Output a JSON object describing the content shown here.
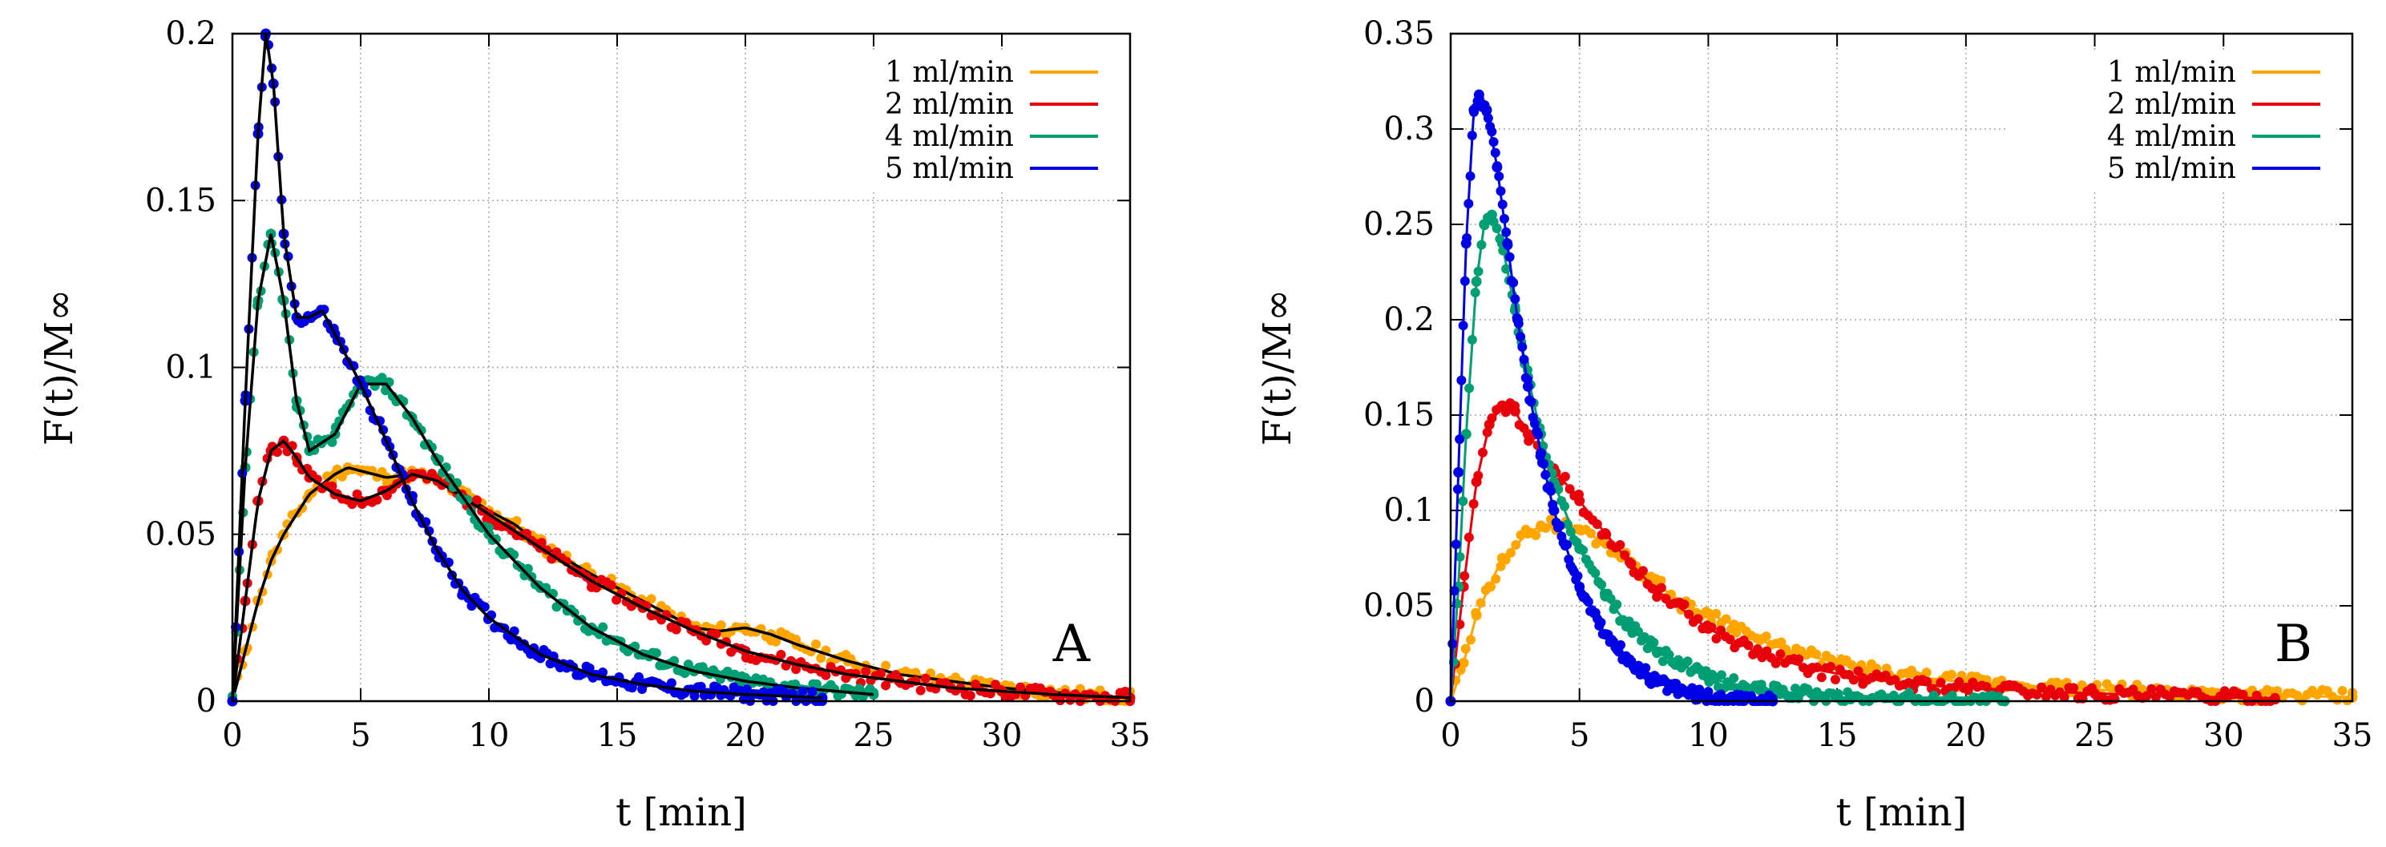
{
  "chart_data": [
    {
      "type": "scatter",
      "panel_label": "A",
      "xlabel": "t [min]",
      "ylabel": "F(t)/M∞",
      "xlim": [
        0,
        35
      ],
      "ylim": [
        0,
        0.2
      ],
      "xticks": [
        "0",
        "5",
        "10",
        "15",
        "20",
        "25",
        "30",
        "35"
      ],
      "yticks": [
        "0",
        "0.05",
        "0.1",
        "0.15",
        "0.2"
      ],
      "grid": true,
      "legend_position": "top-right",
      "fit_curves": "black solid lines",
      "series": [
        {
          "name": "1 ml/min",
          "color": "#FFA500",
          "t_end": 35,
          "x": [
            0,
            0.5,
            1,
            1.5,
            2,
            3,
            4,
            4.5,
            5,
            6,
            7,
            8,
            9,
            10,
            11,
            12,
            14,
            16,
            18,
            19,
            20,
            21,
            22,
            24,
            26,
            28,
            30,
            33,
            35
          ],
          "y": [
            0,
            0.015,
            0.03,
            0.042,
            0.05,
            0.062,
            0.068,
            0.07,
            0.069,
            0.067,
            0.068,
            0.066,
            0.062,
            0.057,
            0.053,
            0.047,
            0.038,
            0.03,
            0.022,
            0.021,
            0.022,
            0.02,
            0.017,
            0.012,
            0.008,
            0.006,
            0.004,
            0.002,
            0.001
          ]
        },
        {
          "name": "2 ml/min",
          "color": "#E8000B",
          "t_end": 35,
          "x": [
            0,
            0.5,
            1,
            1.5,
            2,
            2.5,
            3,
            4,
            5,
            6,
            7,
            8,
            9,
            10,
            12,
            14,
            16,
            18,
            20,
            22,
            24,
            26,
            28,
            30,
            32,
            35
          ],
          "y": [
            0,
            0.03,
            0.06,
            0.075,
            0.078,
            0.073,
            0.067,
            0.062,
            0.06,
            0.063,
            0.068,
            0.066,
            0.061,
            0.056,
            0.046,
            0.036,
            0.028,
            0.021,
            0.015,
            0.011,
            0.008,
            0.006,
            0.004,
            0.003,
            0.002,
            0.001
          ]
        },
        {
          "name": "4 ml/min",
          "color": "#009E73",
          "t_end": 25,
          "x": [
            0,
            0.5,
            1,
            1.5,
            2,
            2.5,
            3,
            4,
            5,
            6,
            7,
            8,
            10,
            12,
            14,
            16,
            18,
            20,
            22,
            25
          ],
          "y": [
            0,
            0.07,
            0.12,
            0.14,
            0.12,
            0.09,
            0.075,
            0.08,
            0.095,
            0.095,
            0.085,
            0.072,
            0.05,
            0.034,
            0.022,
            0.014,
            0.009,
            0.006,
            0.004,
            0.002
          ]
        },
        {
          "name": "5 ml/min",
          "color": "#0000E6",
          "t_end": 23,
          "x": [
            0,
            0.5,
            1,
            1.3,
            1.6,
            2,
            2.5,
            3,
            3.5,
            4,
            5,
            6,
            7,
            8,
            9,
            10,
            12,
            14,
            16,
            18,
            20,
            23
          ],
          "y": [
            0,
            0.09,
            0.17,
            0.2,
            0.185,
            0.14,
            0.115,
            0.115,
            0.117,
            0.11,
            0.095,
            0.078,
            0.06,
            0.045,
            0.033,
            0.025,
            0.014,
            0.008,
            0.005,
            0.003,
            0.002,
            0.001
          ]
        }
      ]
    },
    {
      "type": "scatter",
      "panel_label": "B",
      "xlabel": "t [min]",
      "ylabel": "F(t)/M∞",
      "xlim": [
        0,
        35
      ],
      "ylim": [
        0,
        0.35
      ],
      "xticks": [
        "0",
        "5",
        "10",
        "15",
        "20",
        "25",
        "30",
        "35"
      ],
      "yticks": [
        "0",
        "0.05",
        "0.1",
        "0.15",
        "0.2",
        "0.25",
        "0.3",
        "0.35"
      ],
      "grid": true,
      "legend_position": "top-right",
      "series": [
        {
          "name": "1 ml/min",
          "color": "#FFA500",
          "t_end": 35,
          "x": [
            0,
            0.5,
            1,
            1.5,
            2,
            3,
            3.5,
            4,
            5,
            6,
            7,
            8,
            9,
            10,
            11,
            12,
            13,
            15,
            17,
            20,
            25,
            30,
            35
          ],
          "y": [
            0,
            0.02,
            0.045,
            0.06,
            0.075,
            0.088,
            0.092,
            0.093,
            0.09,
            0.083,
            0.073,
            0.062,
            0.05,
            0.046,
            0.04,
            0.032,
            0.027,
            0.02,
            0.014,
            0.01,
            0.006,
            0.004,
            0.002
          ]
        },
        {
          "name": "2 ml/min",
          "color": "#E8000B",
          "t_end": 32,
          "x": [
            0,
            0.5,
            1,
            1.5,
            2,
            2.5,
            3,
            4,
            5,
            6,
            7,
            8,
            10,
            12,
            14,
            16,
            18,
            20,
            25,
            30,
            32
          ],
          "y": [
            0,
            0.06,
            0.115,
            0.145,
            0.155,
            0.152,
            0.14,
            0.122,
            0.105,
            0.088,
            0.072,
            0.058,
            0.038,
            0.025,
            0.017,
            0.012,
            0.009,
            0.007,
            0.004,
            0.002,
            0.001
          ]
        },
        {
          "name": "4 ml/min",
          "color": "#009E73",
          "t_end": 21.5,
          "x": [
            0,
            0.3,
            0.6,
            1,
            1.3,
            1.6,
            2,
            2.5,
            3,
            3.5,
            4,
            5,
            6,
            7,
            8,
            10,
            12,
            15,
            18,
            21.5
          ],
          "y": [
            0,
            0.06,
            0.14,
            0.22,
            0.25,
            0.255,
            0.24,
            0.205,
            0.17,
            0.14,
            0.115,
            0.08,
            0.055,
            0.038,
            0.026,
            0.012,
            0.006,
            0.002,
            0.001,
            0
          ]
        },
        {
          "name": "5 ml/min",
          "color": "#0000E6",
          "t_end": 12.5,
          "x": [
            0,
            0.3,
            0.6,
            0.9,
            1.1,
            1.4,
            1.8,
            2.2,
            2.6,
            3,
            3.5,
            4,
            5,
            6,
            7,
            8,
            9,
            10,
            11,
            12.5
          ],
          "y": [
            0,
            0.12,
            0.24,
            0.31,
            0.318,
            0.31,
            0.28,
            0.24,
            0.2,
            0.165,
            0.13,
            0.1,
            0.06,
            0.035,
            0.02,
            0.01,
            0.005,
            0.002,
            0.001,
            0
          ]
        }
      ]
    }
  ]
}
